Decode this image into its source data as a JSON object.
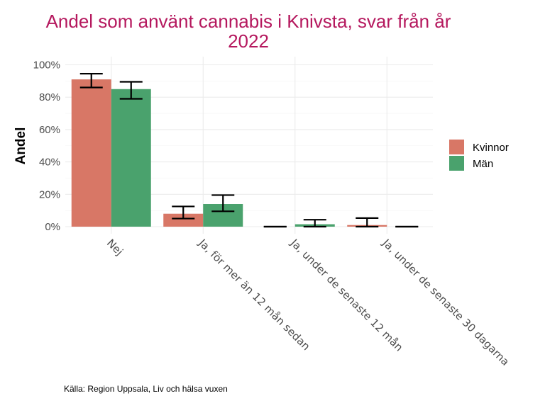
{
  "chart_data": {
    "type": "bar",
    "title_lines": [
      "Andel som använt cannabis i Knivsta, svar från år",
      "2022"
    ],
    "ylabel": "Andel",
    "xlabel": "",
    "ylim": [
      0,
      1.05
    ],
    "yticks": [
      0,
      0.2,
      0.4,
      0.6,
      0.8,
      1.0
    ],
    "ytick_labels": [
      "0%",
      "20%",
      "40%",
      "60%",
      "80%",
      "100%"
    ],
    "categories": [
      "Nej",
      "Ja, för mer än 12 mån sedan",
      "Ja, under de senaste 12 mån",
      "Ja, under de senaste 30 dagarna"
    ],
    "series": [
      {
        "name": "Kvinnor",
        "color": "#d87766",
        "values": [
          0.91,
          0.08,
          0.0,
          0.01
        ],
        "err_low": [
          0.86,
          0.05,
          0.0,
          0.0
        ],
        "err_high": [
          0.945,
          0.125,
          0.0,
          0.053
        ]
      },
      {
        "name": "Män",
        "color": "#4aa26d",
        "values": [
          0.85,
          0.14,
          0.015,
          0.0
        ],
        "err_low": [
          0.79,
          0.095,
          0.0,
          0.0
        ],
        "err_high": [
          0.895,
          0.195,
          0.043,
          0.0
        ]
      }
    ],
    "legend_position": "right",
    "caption": "Källa: Region Uppsala, Liv och hälsa vuxen"
  }
}
